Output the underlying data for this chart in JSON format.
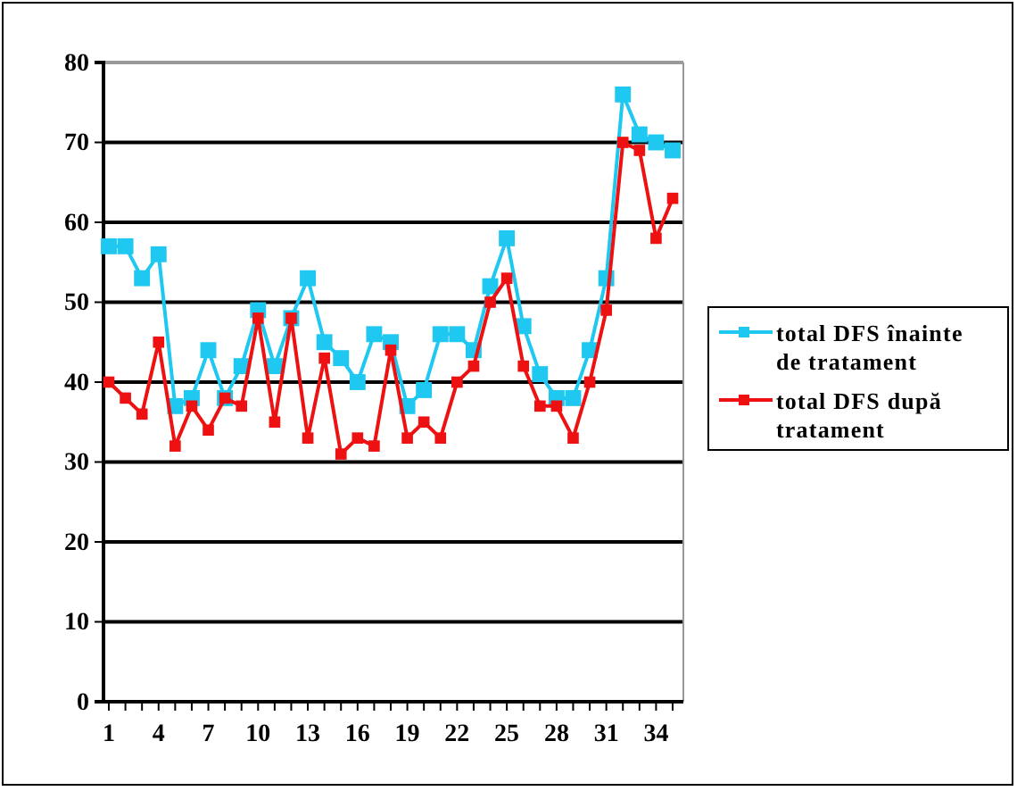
{
  "chart_data": {
    "type": "line",
    "categories": [
      "1",
      null,
      null,
      "4",
      null,
      null,
      "7",
      null,
      null,
      "10",
      null,
      null,
      "13",
      null,
      null,
      "16",
      null,
      null,
      "19",
      null,
      null,
      "22",
      null,
      null,
      "25",
      null,
      null,
      "28",
      null,
      null,
      "31",
      null,
      null,
      "34",
      null
    ],
    "series": [
      {
        "name": "total DFS înainte de tratament",
        "color": "#1ec8f0",
        "values": [
          57,
          57,
          53,
          56,
          37,
          38,
          44,
          38,
          42,
          49,
          42,
          48,
          53,
          45,
          43,
          40,
          46,
          45,
          37,
          39,
          46,
          46,
          44,
          52,
          58,
          47,
          41,
          38,
          38,
          44,
          53,
          76,
          71,
          70,
          69
        ]
      },
      {
        "name": "total DFS după tratament",
        "color": "#ee1111",
        "values": [
          40,
          38,
          36,
          45,
          32,
          37,
          34,
          38,
          37,
          48,
          35,
          48,
          33,
          43,
          31,
          33,
          32,
          44,
          33,
          35,
          33,
          40,
          42,
          50,
          53,
          42,
          37,
          37,
          33,
          40,
          49,
          70,
          69,
          58,
          63
        ]
      }
    ],
    "ylim": [
      0,
      80
    ],
    "yticks": [
      0,
      10,
      20,
      30,
      40,
      50,
      60,
      70,
      80
    ],
    "grid": "y",
    "legend": "right",
    "marker": "square",
    "line_style": "solid"
  }
}
